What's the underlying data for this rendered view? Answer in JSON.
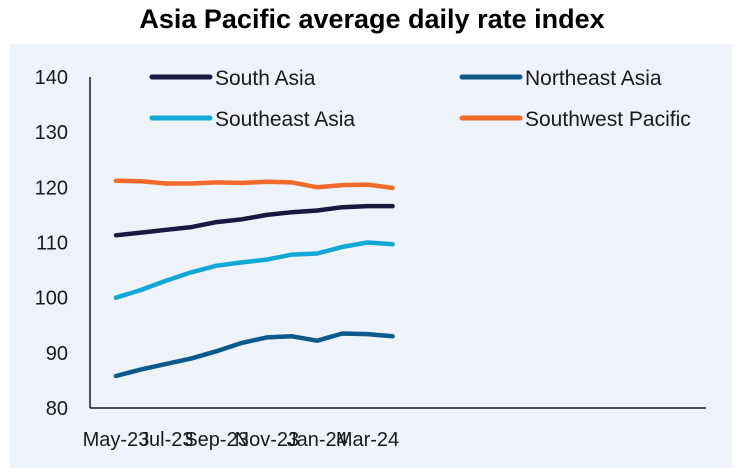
{
  "chart_data": {
    "type": "line",
    "title": "Asia Pacific average daily rate index",
    "xlabel": "",
    "ylabel": "",
    "ylim": [
      80,
      140
    ],
    "yticks": [
      80,
      90,
      100,
      110,
      120,
      130,
      140
    ],
    "x": [
      "May-23",
      "Jun-23",
      "Jul-23",
      "Aug-23",
      "Sep-23",
      "Oct-23",
      "Nov-23",
      "Dec-23",
      "Jan-24",
      "Feb-24",
      "Mar-24",
      "Apr-24"
    ],
    "xtick_labels": [
      "May-23",
      "Jul-23",
      "Sep-23",
      "Nov-23",
      "Jan-24",
      "Mar-24"
    ],
    "grid": false,
    "legend_position": "top",
    "series": [
      {
        "name": "South Asia",
        "color": "#17173f",
        "values": [
          111.3,
          111.8,
          112.3,
          112.8,
          113.7,
          114.2,
          115.0,
          115.5,
          115.8,
          116.4,
          116.6,
          116.6
        ]
      },
      {
        "name": "Northeast Asia",
        "color": "#0c5a8c",
        "values": [
          85.8,
          87.0,
          88.0,
          89.0,
          90.3,
          91.8,
          92.8,
          93.0,
          92.2,
          93.5,
          93.4,
          93.0
        ]
      },
      {
        "name": "Southeast Asia",
        "color": "#12a8d6",
        "values": [
          100.0,
          101.4,
          103.1,
          104.6,
          105.8,
          106.4,
          106.9,
          107.8,
          108.0,
          109.2,
          110.0,
          109.7
        ]
      },
      {
        "name": "Southwest Pacific",
        "color": "#f26a2b",
        "values": [
          121.2,
          121.1,
          120.7,
          120.7,
          120.9,
          120.8,
          121.0,
          120.9,
          120.0,
          120.4,
          120.5,
          119.9
        ]
      }
    ]
  }
}
